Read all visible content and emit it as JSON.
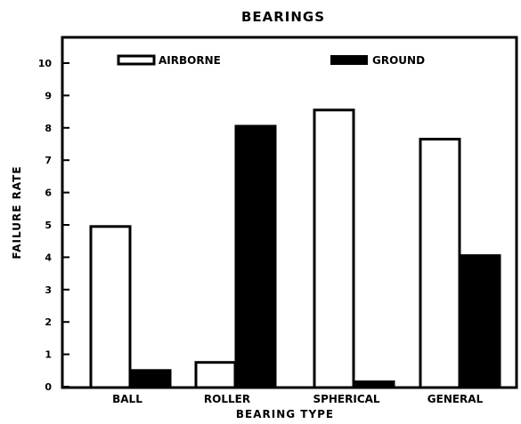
{
  "chart_data": {
    "type": "bar",
    "title": "BEARINGS",
    "xlabel": "BEARING TYPE",
    "ylabel": "FAILURE RATE",
    "categories": [
      "BALL",
      "ROLLER",
      "SPHERICAL",
      "GENERAL"
    ],
    "series": [
      {
        "name": "AIRBORNE",
        "fill": "#ffffff",
        "values": [
          4.95,
          0.75,
          8.55,
          7.65
        ]
      },
      {
        "name": "GROUND",
        "fill": "#000000",
        "values": [
          0.5,
          8.05,
          0.15,
          4.05
        ]
      }
    ],
    "ylim": [
      0,
      10
    ],
    "yticks": [
      0,
      1,
      2,
      3,
      4,
      5,
      6,
      7,
      8,
      9,
      10
    ],
    "grid": false,
    "legend_position": "top"
  }
}
